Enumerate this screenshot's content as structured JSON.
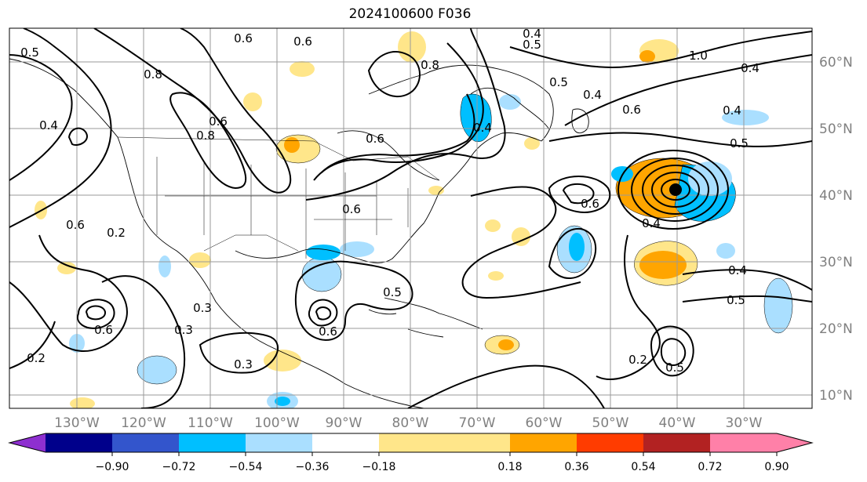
{
  "title": "2024100600 F036",
  "lon_labels": [
    "130°W",
    "120°W",
    "110°W",
    "100°W",
    "90°W",
    "80°W",
    "70°W",
    "60°W",
    "50°W",
    "40°W",
    "30°W"
  ],
  "lat_labels": [
    "60°N",
    "50°N",
    "40°N",
    "30°N",
    "20°N",
    "10°N"
  ],
  "colorbar": {
    "ticks": [
      "−0.90",
      "−0.72",
      "−0.54",
      "−0.36",
      "−0.18",
      "0.18",
      "0.36",
      "0.54",
      "0.72",
      "0.90"
    ],
    "colors": [
      "#8e2fd0",
      "#00008b",
      "#3355cc",
      "#00bfff",
      "#aadfff",
      "#ffffff",
      "#ffe68a",
      "#ffa500",
      "#ff3c00",
      "#b22222",
      "#ff80a8"
    ]
  },
  "contour_labels": [
    "0.5",
    "0.6",
    "0.6",
    "0.8",
    "0.4",
    "0.5",
    "0.8",
    "1.0",
    "0.5",
    "0.4",
    "0.4",
    "0.6",
    "0.4",
    "0.5",
    "0.4",
    "0.6",
    "0.8",
    "0.6",
    "0.2",
    "0.4",
    "0.6",
    "0.3",
    "0.3",
    "0.6",
    "0.6",
    "0.2",
    "0.5",
    "0.6",
    "0.4",
    "0.4",
    "0.5",
    "0.2",
    "0.5",
    "0.6",
    "0.3"
  ],
  "shading_colors": {
    "pos_weak": "#ffe68a",
    "pos_mid": "#ffa500",
    "neg_weak": "#aadfff",
    "neg_mid": "#00bfff"
  }
}
